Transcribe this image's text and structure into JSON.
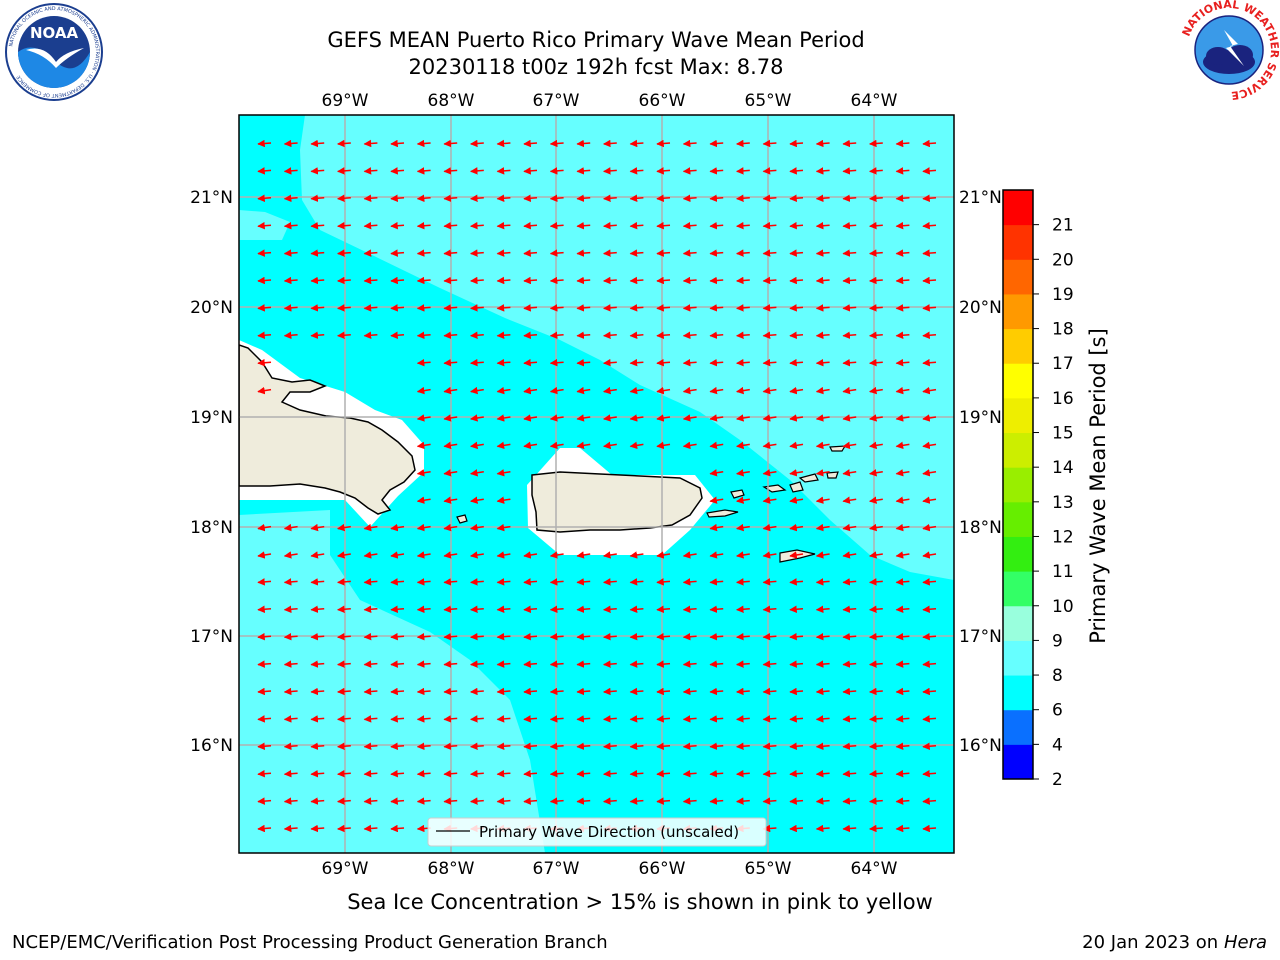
{
  "title": {
    "line1": "GEFS MEAN Puerto Rico Primary Wave Mean Period",
    "line2": "20230118 t00z 192h fcst   Max: 8.78"
  },
  "logos": {
    "left": {
      "name": "noaa-logo",
      "text": "NOAA",
      "ring_text": "NATIONAL OCEANIC AND ATMOSPHERIC ADMINISTRATION · U.S. DEPARTMENT OF COMMERCE"
    },
    "right": {
      "name": "nws-logo",
      "ring_text": "NATIONAL WEATHER SERVICE"
    }
  },
  "map": {
    "lon_labels": [
      "69°W",
      "68°W",
      "67°W",
      "66°W",
      "65°W",
      "64°W"
    ],
    "lat_labels": [
      "21°N",
      "20°N",
      "19°N",
      "18°N",
      "17°N",
      "16°N"
    ],
    "legend": "Primary Wave Direction (unscaled)",
    "colors": {
      "ocean_8_9": "#66ffff",
      "ocean_6_8": "#00ffff",
      "land": "#efecdc",
      "arrow": "#ff0000",
      "grid": "#b0b0b0"
    }
  },
  "colorbar": {
    "label": "Primary Wave Mean Period [s]",
    "ticks": [
      "2",
      "4",
      "6",
      "8",
      "9",
      "10",
      "11",
      "12",
      "13",
      "14",
      "15",
      "16",
      "17",
      "18",
      "19",
      "20",
      "21"
    ],
    "colors": [
      "#0000ff",
      "#0a70ff",
      "#00ffff",
      "#66ffff",
      "#99ffdd",
      "#33ff66",
      "#33ee11",
      "#66ee00",
      "#99ee00",
      "#ccee00",
      "#eeee00",
      "#ffff00",
      "#ffcc00",
      "#ff9900",
      "#ff6600",
      "#ff3300",
      "#ff0000"
    ]
  },
  "footer": {
    "subtitle": "Sea Ice Concentration > 15% is shown in pink to yellow",
    "left": "NCEP/EMC/Verification Post Processing Product Generation Branch",
    "right_date": "20 Jan 2023 on",
    "right_host": "Hera"
  }
}
